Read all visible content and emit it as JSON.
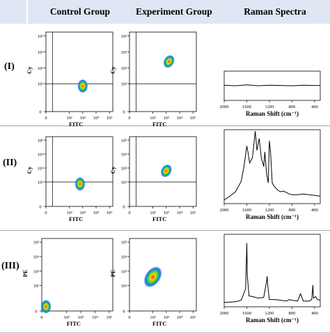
{
  "header": {
    "col_blank": "",
    "col_control": "Control Group",
    "col_experiment": "Experiment Group",
    "col_raman": "Raman Spectra",
    "bg_color": "#dfe7f4"
  },
  "rows": [
    {
      "label": "(I)",
      "y_channel": "Cy"
    },
    {
      "label": "(II)",
      "y_channel": "Cy"
    },
    {
      "label": "(III)",
      "y_channel": "PE"
    }
  ],
  "chart_data": [
    {
      "type": "scatter",
      "panel": "I-control",
      "xlabel": "FITC",
      "ylabel": "Cy",
      "x_ticks": [
        "0",
        "10²",
        "10³",
        "10⁴",
        "10⁵"
      ],
      "y_ticks": [
        "0",
        "10²",
        "10³",
        "10⁴",
        "10⁵"
      ],
      "gate": {
        "x": "10¹",
        "y": "10²"
      },
      "clusters": [
        {
          "center_x": "10³",
          "center_y": "10¹·⁸"
        }
      ]
    },
    {
      "type": "scatter",
      "panel": "I-experiment",
      "xlabel": "FITC",
      "ylabel": "Cy",
      "x_ticks": [
        "0",
        "10²",
        "10³",
        "10⁴",
        "10⁵"
      ],
      "y_ticks": [
        "0",
        "10²",
        "10³",
        "10⁴",
        "10⁵"
      ],
      "gate": {
        "x": "10¹",
        "y": "10²"
      },
      "clusters": [
        {
          "center_x": "10³·²",
          "center_y": "10³·⁴"
        }
      ]
    },
    {
      "type": "line",
      "panel": "I-raman",
      "xlabel": "Raman Shift (cm⁻¹)",
      "x_ticks": [
        2000,
        1600,
        1200,
        800,
        400
      ],
      "xlim": [
        2000,
        300
      ],
      "ylim": [
        0,
        1
      ],
      "series": [
        {
          "x": [
            2000,
            1800,
            1600,
            1400,
            1200,
            1000,
            800,
            600,
            400,
            300
          ],
          "y": [
            0.52,
            0.5,
            0.53,
            0.5,
            0.52,
            0.51,
            0.5,
            0.52,
            0.51,
            0.51
          ]
        }
      ]
    },
    {
      "type": "scatter",
      "panel": "II-control",
      "xlabel": "FITC",
      "ylabel": "Cy",
      "x_ticks": [
        "0",
        "10²",
        "10³",
        "10⁴",
        "10⁵"
      ],
      "y_ticks": [
        "0",
        "10²",
        "10³",
        "10⁴",
        "10⁵"
      ],
      "gate": {
        "x": "10¹",
        "y": "10²"
      },
      "clusters": [
        {
          "center_x": "10²·⁸",
          "center_y": "10¹·⁸"
        }
      ]
    },
    {
      "type": "scatter",
      "panel": "II-experiment",
      "xlabel": "FITC",
      "ylabel": "Cy",
      "x_ticks": [
        "0",
        "10²",
        "10³",
        "10⁴",
        "10⁵"
      ],
      "y_ticks": [
        "0",
        "10²",
        "10³",
        "10⁴",
        "10⁵"
      ],
      "gate": {
        "x": "10¹",
        "y": "10²"
      },
      "clusters": [
        {
          "center_x": "10³",
          "center_y": "10²·⁸"
        }
      ]
    },
    {
      "type": "line",
      "panel": "II-raman",
      "xlabel": "Raman Shift (cm⁻¹)",
      "x_ticks": [
        2000,
        1600,
        1200,
        800,
        400
      ],
      "xlim": [
        2000,
        300
      ],
      "ylim": [
        0,
        1
      ],
      "series": [
        {
          "x": [
            2000,
            1900,
            1800,
            1700,
            1650,
            1600,
            1580,
            1550,
            1500,
            1450,
            1420,
            1380,
            1340,
            1320,
            1300,
            1280,
            1250,
            1220,
            1200,
            1180,
            1150,
            1120,
            1100,
            1050,
            1000,
            950,
            900,
            850,
            800,
            700,
            600,
            500,
            400,
            300
          ],
          "y": [
            0.05,
            0.1,
            0.16,
            0.3,
            0.5,
            0.78,
            0.7,
            0.55,
            0.62,
            0.98,
            0.72,
            0.88,
            0.6,
            0.56,
            0.5,
            0.7,
            0.4,
            0.28,
            0.85,
            0.7,
            0.28,
            0.24,
            0.22,
            0.18,
            0.16,
            0.17,
            0.15,
            0.13,
            0.12,
            0.12,
            0.13,
            0.12,
            0.11,
            0.1
          ]
        }
      ]
    },
    {
      "type": "scatter",
      "panel": "III-control",
      "xlabel": "FITC",
      "ylabel": "PE",
      "x_ticks": [
        "0",
        "10²",
        "10³",
        "10⁴",
        "10⁵"
      ],
      "y_ticks": [
        "0",
        "10²",
        "10³",
        "10⁴",
        "10⁵"
      ],
      "clusters": [
        {
          "center_x": "0",
          "center_y": "0"
        }
      ]
    },
    {
      "type": "scatter",
      "panel": "III-experiment",
      "xlabel": "FITC",
      "ylabel": "PE",
      "x_ticks": [
        "0",
        "10²",
        "10³",
        "10⁴",
        "10⁵"
      ],
      "y_ticks": [
        "0",
        "10²",
        "10³",
        "10⁴",
        "10⁵"
      ],
      "clusters": [
        {
          "center_x": "10²",
          "center_y": "10²·⁶"
        }
      ]
    },
    {
      "type": "line",
      "panel": "III-raman",
      "xlabel": "Raman Shift (cm⁻¹)",
      "x_ticks": [
        2000,
        1600,
        1200,
        800,
        400
      ],
      "xlim": [
        2000,
        300
      ],
      "ylim": [
        0,
        1
      ],
      "series": [
        {
          "x": [
            2000,
            1800,
            1700,
            1620,
            1600,
            1590,
            1560,
            1500,
            1400,
            1300,
            1250,
            1240,
            1230,
            1200,
            1100,
            1000,
            900,
            850,
            800,
            700,
            650,
            600,
            500,
            450,
            430,
            420,
            380,
            350,
            300
          ],
          "y": [
            0.06,
            0.07,
            0.09,
            0.25,
            0.88,
            0.42,
            0.15,
            0.14,
            0.12,
            0.13,
            0.35,
            0.42,
            0.3,
            0.1,
            0.1,
            0.09,
            0.08,
            0.1,
            0.09,
            0.08,
            0.18,
            0.08,
            0.08,
            0.1,
            0.3,
            0.12,
            0.14,
            0.1,
            0.09
          ]
        }
      ]
    }
  ]
}
